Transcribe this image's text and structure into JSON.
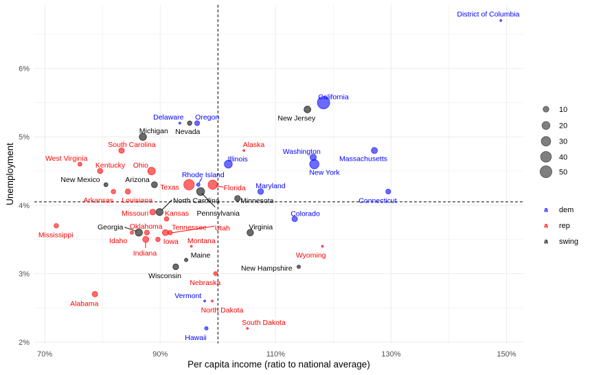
{
  "chart_data": {
    "type": "scatter",
    "title": "",
    "xlabel": "Per capita income (ratio to national average)",
    "ylabel": "Unemployment",
    "xlim": [
      68.2,
      152.9
    ],
    "ylim": [
      1.98,
      6.93
    ],
    "x_ticks": [
      70,
      90,
      110,
      130,
      150
    ],
    "x_tick_labels": [
      "70%",
      "90%",
      "110%",
      "130%",
      "150%"
    ],
    "y_ticks": [
      2,
      3,
      4,
      5,
      6
    ],
    "y_tick_labels": [
      "2%",
      "3%",
      "4%",
      "5%",
      "6%"
    ],
    "grid": true,
    "reference_lines": {
      "vline_x": 100,
      "hline_y": 4.05,
      "style": "dashed"
    },
    "groups": {
      "dem": {
        "color": "#0000FF"
      },
      "rep": {
        "color": "#FF0000"
      },
      "swing": {
        "color": "#000000"
      }
    },
    "size_legend": {
      "title": "",
      "breaks": [
        10,
        20,
        30,
        40,
        50
      ],
      "placement": "right"
    },
    "color_legend": {
      "title": "",
      "placement": "right",
      "key_glyph": "a",
      "entries": [
        {
          "name": "dem",
          "color": "#0000FF"
        },
        {
          "name": "rep",
          "color": "#FF0000"
        },
        {
          "name": "swing",
          "color": "#000000"
        }
      ]
    },
    "points": [
      {
        "label": "District of Columbia",
        "x": 149.0,
        "y": 6.7,
        "group": "dem",
        "size": 3
      },
      {
        "label": "California",
        "x": 118.3,
        "y": 5.5,
        "group": "dem",
        "size": 55
      },
      {
        "label": "New Jersey",
        "x": 115.5,
        "y": 5.4,
        "group": "swing",
        "size": 14
      },
      {
        "label": "Washington",
        "x": 116.5,
        "y": 4.7,
        "group": "dem",
        "size": 12
      },
      {
        "label": "New York",
        "x": 116.7,
        "y": 4.6,
        "group": "dem",
        "size": 29
      },
      {
        "label": "Massachusetts",
        "x": 127.1,
        "y": 4.8,
        "group": "dem",
        "size": 11
      },
      {
        "label": "Connecticut",
        "x": 129.5,
        "y": 4.2,
        "group": "dem",
        "size": 7
      },
      {
        "label": "Colorado",
        "x": 113.3,
        "y": 3.8,
        "group": "dem",
        "size": 9
      },
      {
        "label": "Wyoming",
        "x": 118.1,
        "y": 3.4,
        "group": "rep",
        "size": 3
      },
      {
        "label": "New Hampshire",
        "x": 114.0,
        "y": 3.1,
        "group": "swing",
        "size": 4
      },
      {
        "label": "Maryland",
        "x": 107.4,
        "y": 4.2,
        "group": "dem",
        "size": 10
      },
      {
        "label": "Illinois",
        "x": 101.8,
        "y": 4.6,
        "group": "dem",
        "size": 20
      },
      {
        "label": "Alaska",
        "x": 104.5,
        "y": 4.8,
        "group": "rep",
        "size": 3
      },
      {
        "label": "Minnesota",
        "x": 103.4,
        "y": 4.1,
        "group": "swing",
        "size": 10
      },
      {
        "label": "Virginia",
        "x": 105.6,
        "y": 3.6,
        "group": "swing",
        "size": 13
      },
      {
        "label": "South Dakota",
        "x": 105.1,
        "y": 2.2,
        "group": "rep",
        "size": 3
      },
      {
        "label": "Florida",
        "x": 99.1,
        "y": 4.3,
        "group": "rep",
        "size": 29
      },
      {
        "label": "Texas",
        "x": 95.0,
        "y": 4.3,
        "group": "rep",
        "size": 38
      },
      {
        "label": "Rhode Island",
        "x": 96.6,
        "y": 4.3,
        "group": "dem",
        "size": 4
      },
      {
        "label": "Pennsylvania",
        "x": 97.0,
        "y": 4.2,
        "group": "swing",
        "size": 20
      },
      {
        "label": "Oregon",
        "x": 96.4,
        "y": 5.2,
        "group": "dem",
        "size": 7
      },
      {
        "label": "Nevada",
        "x": 95.1,
        "y": 5.2,
        "group": "swing",
        "size": 6
      },
      {
        "label": "Delaware",
        "x": 93.4,
        "y": 5.2,
        "group": "dem",
        "size": 3
      },
      {
        "label": "Michigan",
        "x": 87.0,
        "y": 5.0,
        "group": "swing",
        "size": 16
      },
      {
        "label": "South Carolina",
        "x": 83.3,
        "y": 4.8,
        "group": "rep",
        "size": 9
      },
      {
        "label": "Ohio",
        "x": 88.5,
        "y": 4.5,
        "group": "rep",
        "size": 18
      },
      {
        "label": "Kentucky",
        "x": 79.6,
        "y": 4.5,
        "group": "rep",
        "size": 8
      },
      {
        "label": "West Virginia",
        "x": 76.1,
        "y": 4.6,
        "group": "rep",
        "size": 5
      },
      {
        "label": "New Mexico",
        "x": 80.6,
        "y": 4.3,
        "group": "swing",
        "size": 5
      },
      {
        "label": "Arizona",
        "x": 89.0,
        "y": 4.3,
        "group": "swing",
        "size": 11
      },
      {
        "label": "Arkansas",
        "x": 81.9,
        "y": 4.2,
        "group": "rep",
        "size": 6
      },
      {
        "label": "Louisiana",
        "x": 84.4,
        "y": 4.2,
        "group": "rep",
        "size": 8
      },
      {
        "label": "North Carolina",
        "x": 89.9,
        "y": 3.9,
        "group": "swing",
        "size": 15
      },
      {
        "label": "Missouri",
        "x": 88.7,
        "y": 3.9,
        "group": "rep",
        "size": 10
      },
      {
        "label": "Kansas",
        "x": 91.1,
        "y": 3.8,
        "group": "rep",
        "size": 6
      },
      {
        "label": "Georgia",
        "x": 86.3,
        "y": 3.6,
        "group": "swing",
        "size": 16
      },
      {
        "label": "Oklahoma",
        "x": 87.7,
        "y": 3.6,
        "group": "rep",
        "size": 7
      },
      {
        "label": "Idaho",
        "x": 85.1,
        "y": 3.6,
        "group": "rep",
        "size": 4
      },
      {
        "label": "Tennessee",
        "x": 90.9,
        "y": 3.6,
        "group": "rep",
        "size": 11
      },
      {
        "label": "Utah",
        "x": 91.7,
        "y": 3.6,
        "group": "rep",
        "size": 6
      },
      {
        "label": "Indiana",
        "x": 87.5,
        "y": 3.5,
        "group": "rep",
        "size": 11
      },
      {
        "label": "Iowa",
        "x": 89.6,
        "y": 3.5,
        "group": "rep",
        "size": 6
      },
      {
        "label": "Montana",
        "x": 95.4,
        "y": 3.4,
        "group": "rep",
        "size": 3
      },
      {
        "label": "Maine",
        "x": 94.5,
        "y": 3.2,
        "group": "swing",
        "size": 4
      },
      {
        "label": "Wisconsin",
        "x": 92.7,
        "y": 3.1,
        "group": "swing",
        "size": 10
      },
      {
        "label": "Nebraska",
        "x": 99.6,
        "y": 3.0,
        "group": "rep",
        "size": 5
      },
      {
        "label": "Vermont",
        "x": 97.7,
        "y": 2.6,
        "group": "dem",
        "size": 3
      },
      {
        "label": "North Dakota",
        "x": 99.0,
        "y": 2.6,
        "group": "rep",
        "size": 3
      },
      {
        "label": "Hawaii",
        "x": 98.0,
        "y": 2.2,
        "group": "dem",
        "size": 4
      },
      {
        "label": "Mississippi",
        "x": 72.0,
        "y": 3.7,
        "group": "rep",
        "size": 6
      },
      {
        "label": "Alabama",
        "x": 78.7,
        "y": 2.7,
        "group": "rep",
        "size": 9
      }
    ]
  }
}
